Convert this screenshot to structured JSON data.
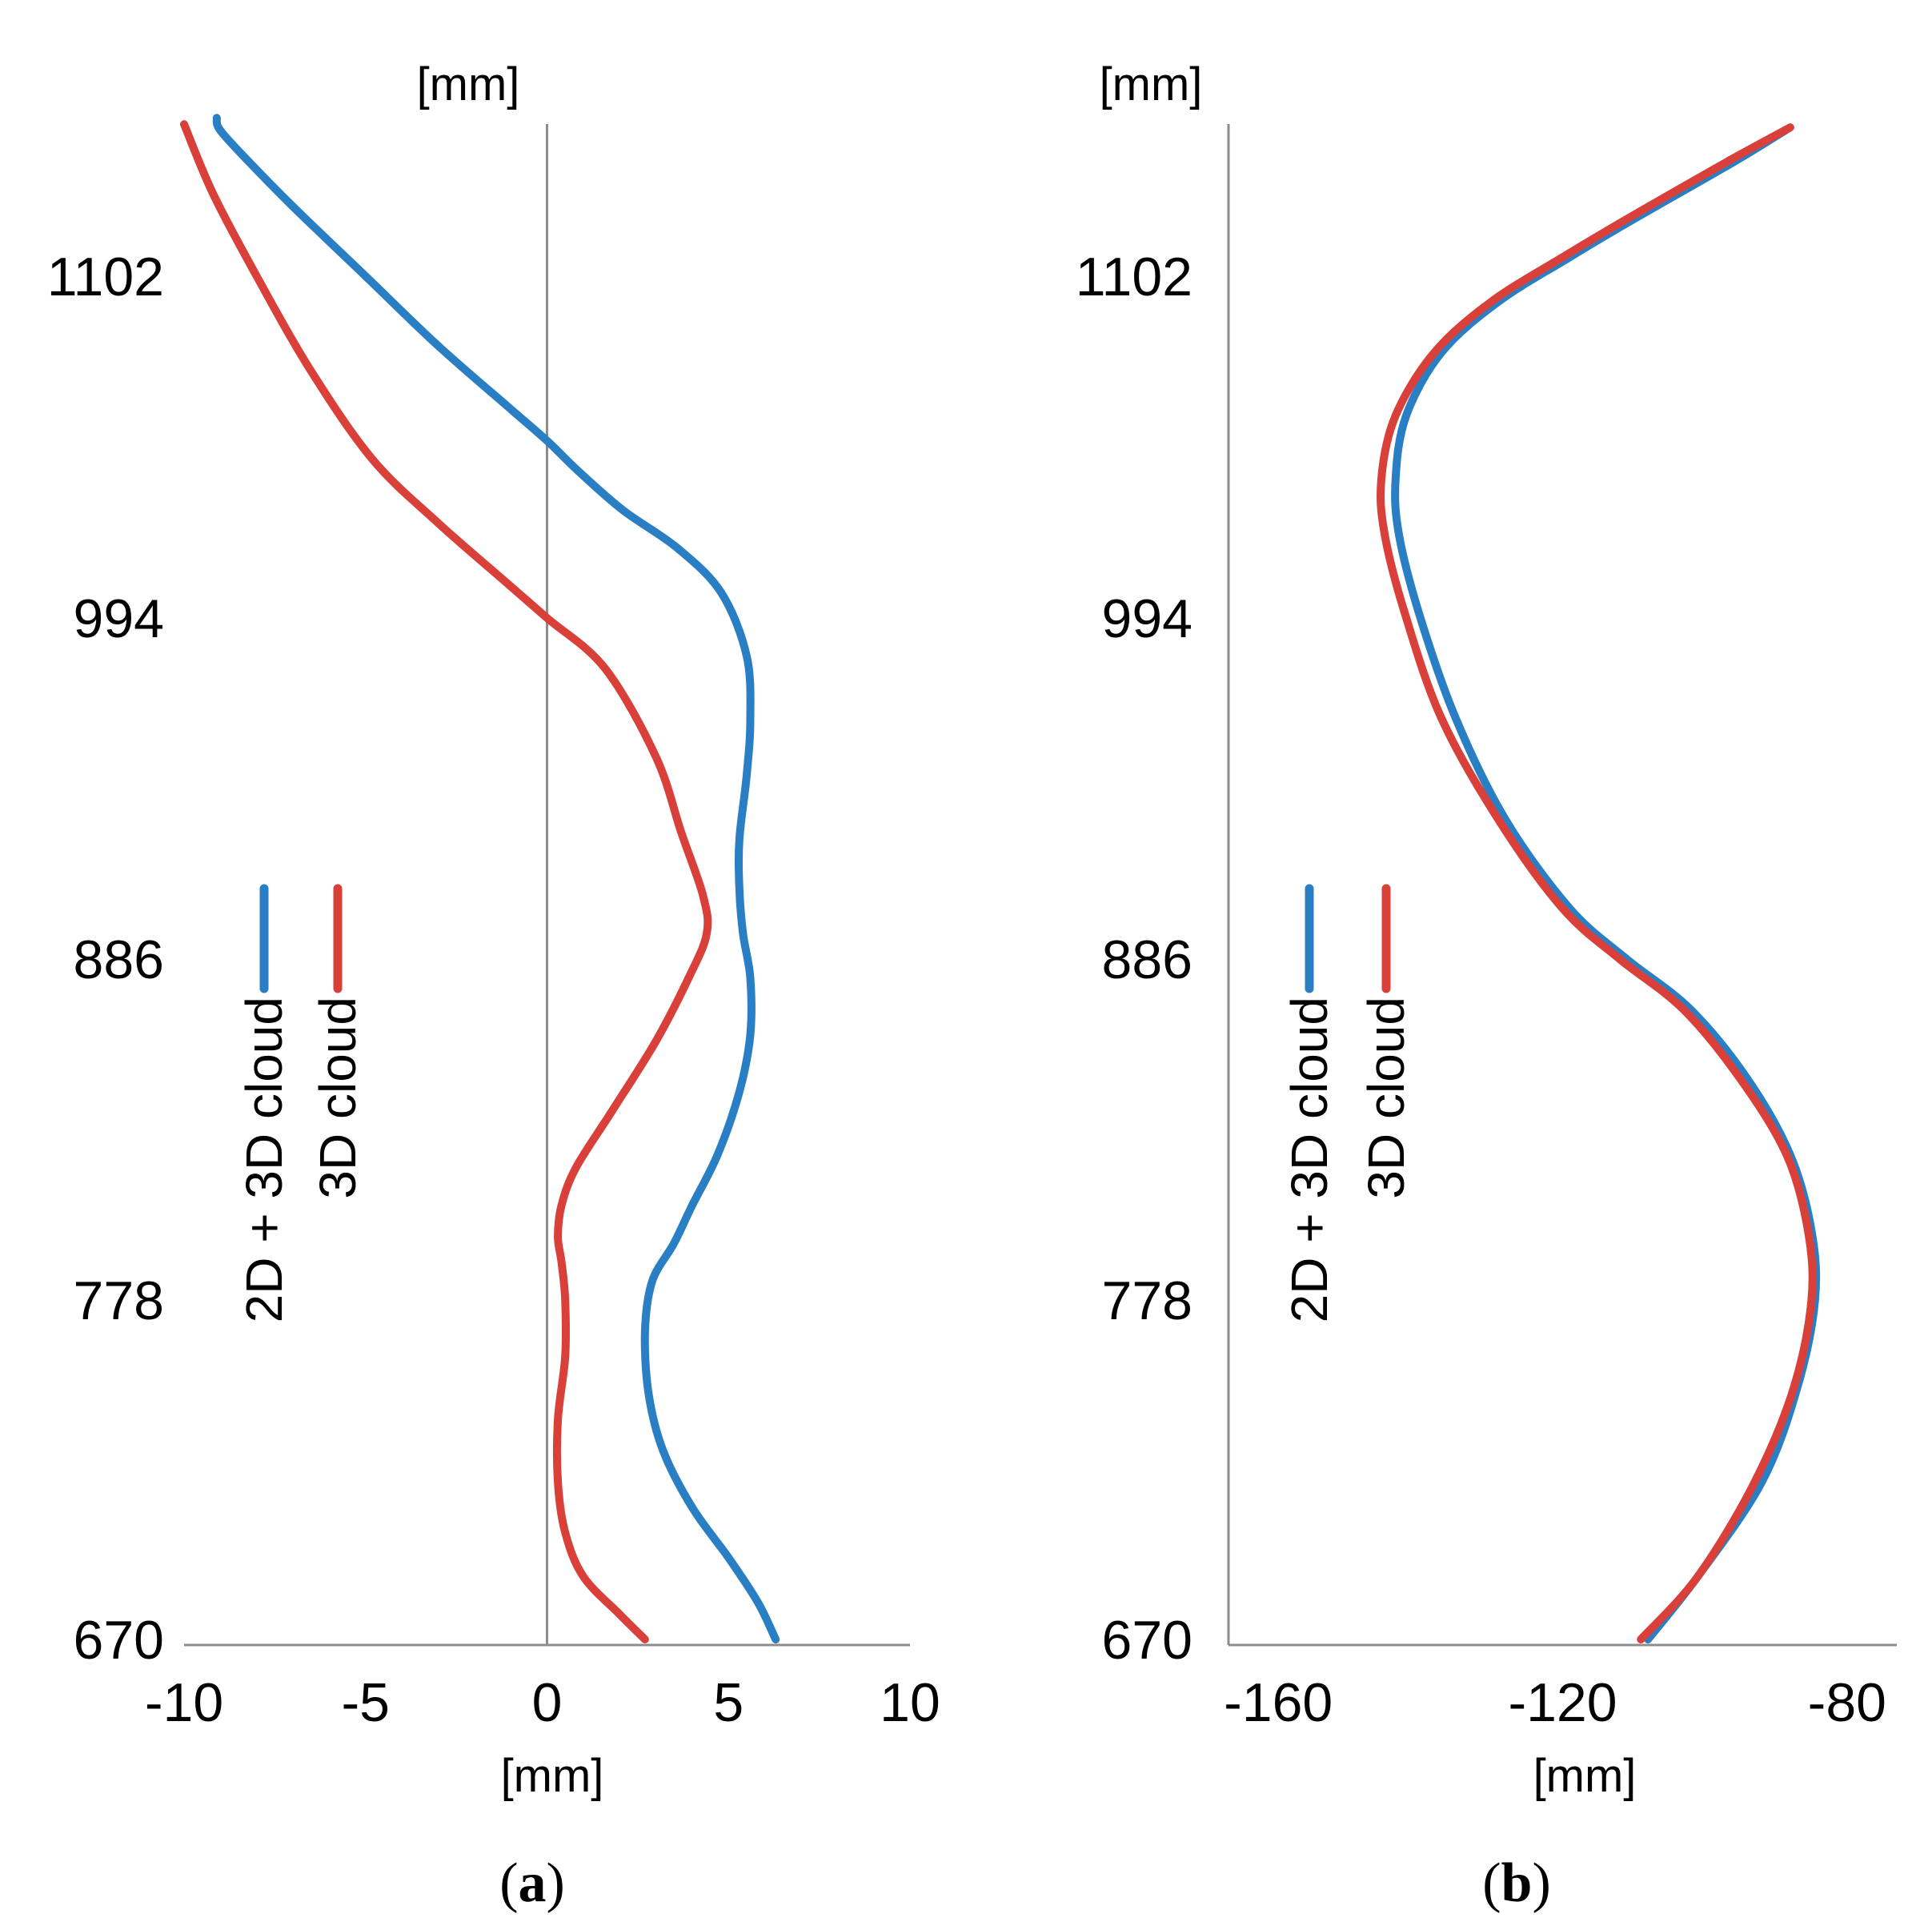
{
  "chart_data": [
    {
      "type": "line",
      "panel_label": {
        "open": "(",
        "letter": "a",
        "close": ")"
      },
      "x_unit_label": "[mm]",
      "y_unit_label": "[mm]",
      "xlim": [
        -10,
        10
      ],
      "xticks": [
        -10,
        -5,
        0,
        5,
        10
      ],
      "xtick_labels": [
        "-10",
        "-5",
        "0",
        "5",
        "10"
      ],
      "ylim": [
        670,
        1152
      ],
      "yticks": [
        670,
        778,
        886,
        994,
        1102
      ],
      "ytick_labels": [
        "670",
        "778",
        "886",
        "994",
        "1102"
      ],
      "zero_line": true,
      "legend_placement": "left, rotated vertical",
      "series": [
        {
          "name": "2D + 3D cloud",
          "color": "#2a7fc4",
          "x": [
            6.3,
            5.8,
            5.0,
            4.0,
            3.2,
            2.8,
            2.7,
            2.9,
            3.5,
            4.0,
            4.7,
            5.3,
            5.6,
            5.6,
            5.4,
            5.3,
            5.3,
            5.5,
            5.6,
            5.5,
            4.8,
            3.6,
            2.1,
            0.9,
            0.0,
            -1.0,
            -3.0,
            -5.0,
            -7.0,
            -8.2,
            -9.0,
            -9.1
          ],
          "y": [
            670,
            682,
            696,
            712,
            730,
            748,
            768,
            784,
            796,
            808,
            824,
            844,
            862,
            880,
            894,
            908,
            924,
            944,
            962,
            982,
            1002,
            1016,
            1028,
            1040,
            1050,
            1060,
            1080,
            1102,
            1124,
            1138,
            1148,
            1152
          ]
        },
        {
          "name": "3D cloud",
          "color": "#d9403a",
          "x": [
            2.7,
            2.0,
            1.0,
            0.5,
            0.3,
            0.3,
            0.5,
            0.5,
            0.4,
            0.3,
            0.4,
            0.8,
            1.8,
            3.0,
            3.9,
            4.4,
            4.3,
            3.7,
            3.0,
            1.6,
            0.0,
            -1.2,
            -3.0,
            -4.8,
            -6.5,
            -8.0,
            -9.2,
            -10.0
          ],
          "y": [
            670,
            678,
            690,
            704,
            720,
            740,
            760,
            778,
            790,
            798,
            808,
            820,
            838,
            860,
            880,
            894,
            906,
            926,
            950,
            978,
            994,
            1006,
            1024,
            1044,
            1072,
            1102,
            1128,
            1150
          ]
        }
      ]
    },
    {
      "type": "line",
      "panel_label": {
        "open": "(",
        "letter": "b",
        "close": ")"
      },
      "x_unit_label": "[mm]",
      "y_unit_label": "[mm]",
      "xlim": [
        -167,
        -73
      ],
      "xticks": [
        -160,
        -120,
        -80
      ],
      "xtick_labels": [
        "-160",
        "-120",
        "-80"
      ],
      "ylim": [
        670,
        1152
      ],
      "yticks": [
        670,
        778,
        886,
        994,
        1102
      ],
      "ytick_labels": [
        "670",
        "778",
        "886",
        "994",
        "1102"
      ],
      "zero_line": false,
      "legend_placement": "left, rotated vertical",
      "series": [
        {
          "name": "2D + 3D cloud",
          "color": "#2a7fc4",
          "x": [
            -108,
            -101,
            -92,
            -87,
            -84.5,
            -85,
            -88,
            -94,
            -102,
            -111,
            -119,
            -128,
            -135,
            -140,
            -143.0,
            -143.5,
            -142,
            -137,
            -129,
            -119,
            -110,
            -96,
            -88
          ],
          "y": [
            670,
            690,
            720,
            750,
            778,
            800,
            824,
            848,
            870,
            886,
            902,
            930,
            962,
            994,
            1020,
            1038,
            1058,
            1078,
            1094,
            1108,
            1120,
            1138,
            1149
          ]
        },
        {
          "name": "3D cloud",
          "color": "#d9403a",
          "x": [
            -109,
            -101,
            -93,
            -87.5,
            -85,
            -85.5,
            -88.5,
            -95,
            -103,
            -112,
            -120,
            -129,
            -137,
            -142,
            -145.0,
            -145.5,
            -143.5,
            -138,
            -130,
            -120,
            -111,
            -97,
            -88
          ],
          "y": [
            670,
            690,
            720,
            750,
            778,
            800,
            824,
            848,
            870,
            886,
            902,
            930,
            962,
            994,
            1020,
            1038,
            1058,
            1078,
            1094,
            1108,
            1120,
            1138,
            1149
          ]
        }
      ]
    }
  ]
}
